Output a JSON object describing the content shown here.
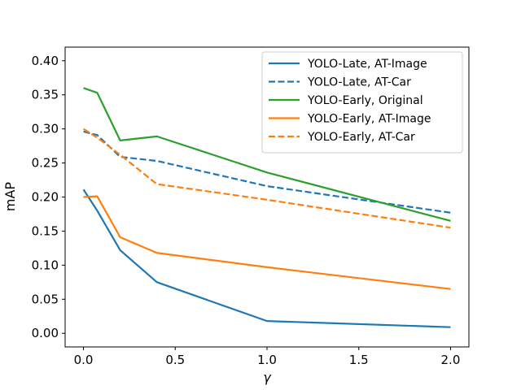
{
  "chart_data": {
    "type": "line",
    "title": "",
    "xlabel": "γ",
    "ylabel": "mAP",
    "xlim": [
      -0.1,
      2.1
    ],
    "ylim": [
      -0.02,
      0.42
    ],
    "x_ticks": [
      0.0,
      0.5,
      1.0,
      1.5,
      2.0
    ],
    "x_tick_labels": [
      "0.0",
      "0.5",
      "1.0",
      "1.5",
      "2.0"
    ],
    "y_ticks": [
      0.0,
      0.05,
      0.1,
      0.15,
      0.2,
      0.25,
      0.3,
      0.35,
      0.4
    ],
    "y_tick_labels": [
      "0.00",
      "0.05",
      "0.10",
      "0.15",
      "0.20",
      "0.25",
      "0.30",
      "0.35",
      "0.40"
    ],
    "grid": false,
    "legend_position": "top-right",
    "series": [
      {
        "name": "YOLO-Late, AT-Image",
        "color": "#1f77b4",
        "dash": "solid",
        "x": [
          0,
          0.075,
          0.2,
          0.4,
          1.0,
          2.0
        ],
        "values": [
          0.211,
          0.18,
          0.122,
          0.075,
          0.018,
          0.009
        ]
      },
      {
        "name": "YOLO-Late, AT-Car",
        "color": "#1f77b4",
        "dash": "dashed",
        "x": [
          0,
          0.075,
          0.2,
          0.4,
          1.0,
          2.0
        ],
        "values": [
          0.296,
          0.291,
          0.259,
          0.253,
          0.216,
          0.177
        ]
      },
      {
        "name": "YOLO-Early, Original",
        "color": "#2ca02c",
        "dash": "solid",
        "x": [
          0,
          0.075,
          0.2,
          0.4,
          1.0,
          2.0
        ],
        "values": [
          0.36,
          0.353,
          0.283,
          0.289,
          0.236,
          0.165
        ]
      },
      {
        "name": "YOLO-Early, AT-Image",
        "color": "#ff7f0e",
        "dash": "solid",
        "x": [
          0,
          0.075,
          0.2,
          0.4,
          1.0,
          2.0
        ],
        "values": [
          0.2,
          0.201,
          0.141,
          0.118,
          0.097,
          0.065
        ]
      },
      {
        "name": "YOLO-Early, AT-Car",
        "color": "#ff7f0e",
        "dash": "dashed",
        "x": [
          0,
          0.075,
          0.2,
          0.4,
          1.0,
          2.0
        ],
        "values": [
          0.3,
          0.287,
          0.262,
          0.219,
          0.196,
          0.155
        ]
      }
    ]
  }
}
